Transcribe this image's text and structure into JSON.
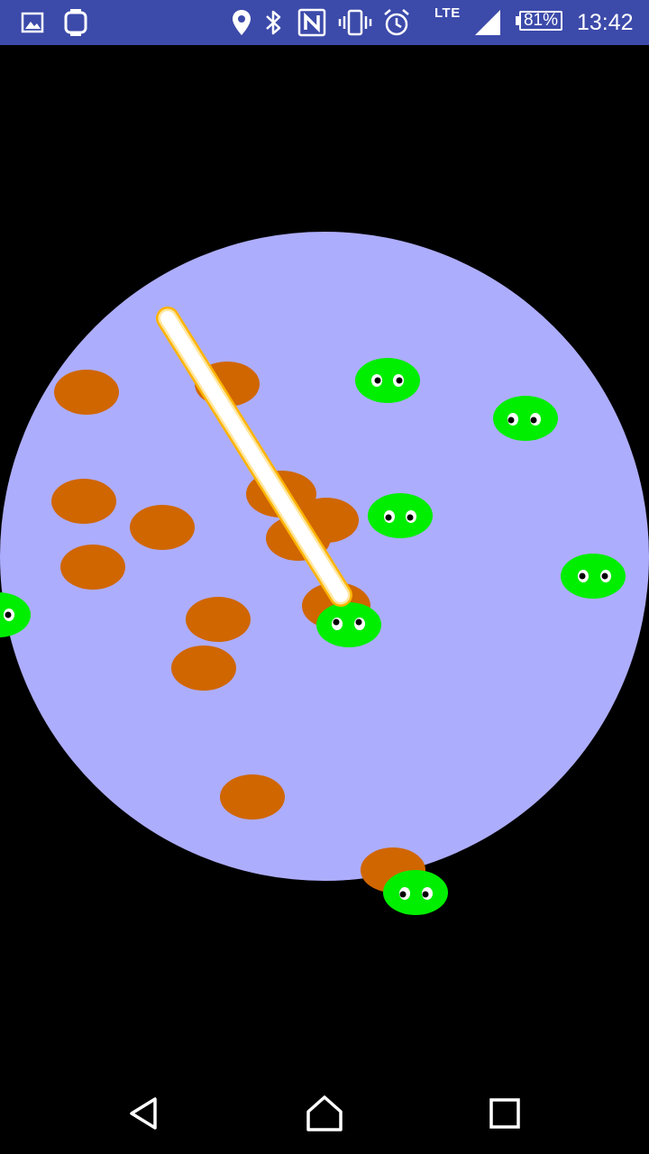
{
  "status_bar": {
    "left_icons": [
      "image-notification-icon",
      "watch-notification-icon"
    ],
    "right_icons": [
      "location-icon",
      "bluetooth-icon",
      "nfc-icon",
      "vibrate-icon",
      "alarm-icon"
    ],
    "network_label": "LTE",
    "battery_percent": "81%",
    "battery_level": 0.81,
    "time": "13:42"
  },
  "game": {
    "arena_color": "#adadfd",
    "background_color": "#000000",
    "orange_blob_color": "#d06600",
    "green_creature_color": "#00ee00",
    "beam_core_color": "#ffffff",
    "beam_glow_color": "#ffb400",
    "orange_blob_count": 15,
    "green_creature_count": 8
  },
  "nav_bar": {
    "buttons": [
      "back-icon",
      "home-icon",
      "recents-icon"
    ]
  }
}
